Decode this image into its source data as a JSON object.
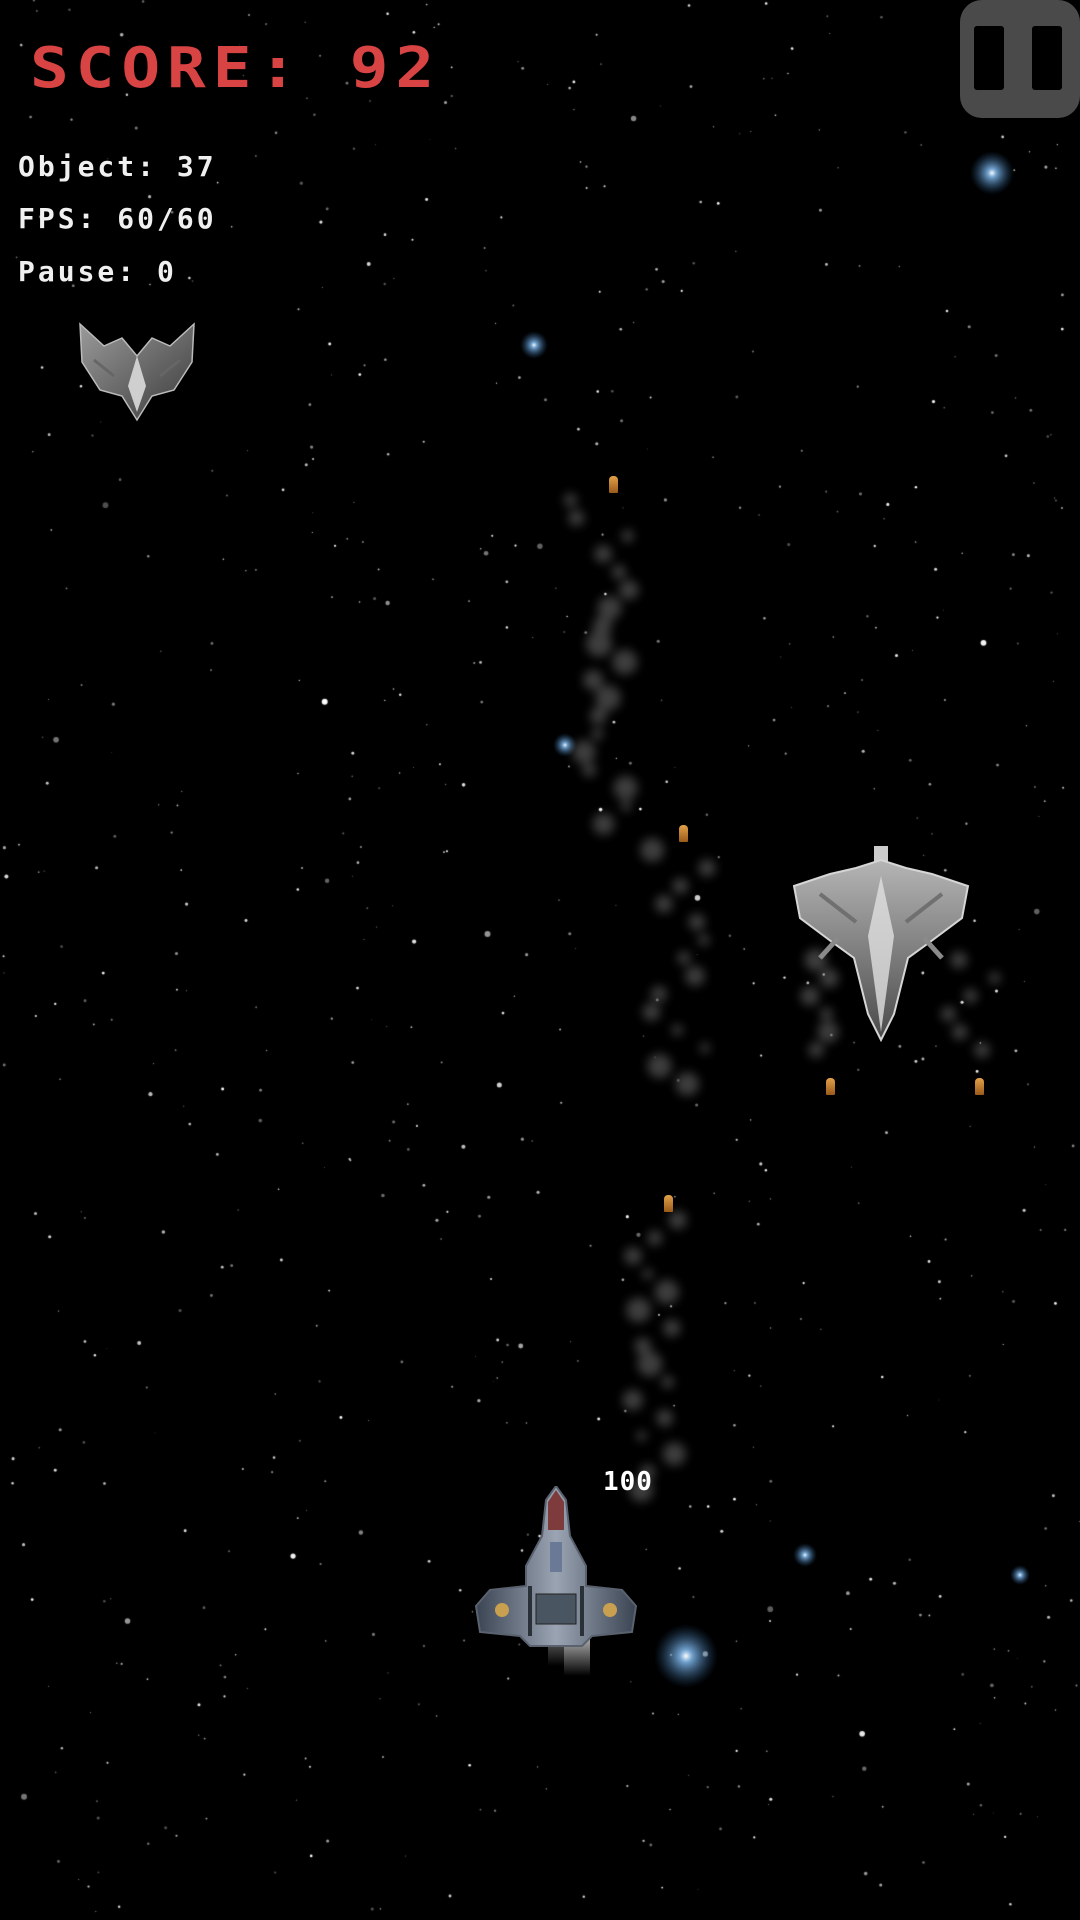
{
  "hud": {
    "score_text": "SCORE: 92",
    "object_text": "Object: 37",
    "fps_text": "FPS: 60/60",
    "pause_text": "Pause: 0",
    "score_color": "#d84444"
  },
  "player": {
    "health_label": "100"
  },
  "icons": {
    "pause": "pause-icon",
    "player_ship": "player-ship-icon",
    "enemy_ship": "enemy-ship-icon",
    "bullet": "bullet-icon"
  }
}
